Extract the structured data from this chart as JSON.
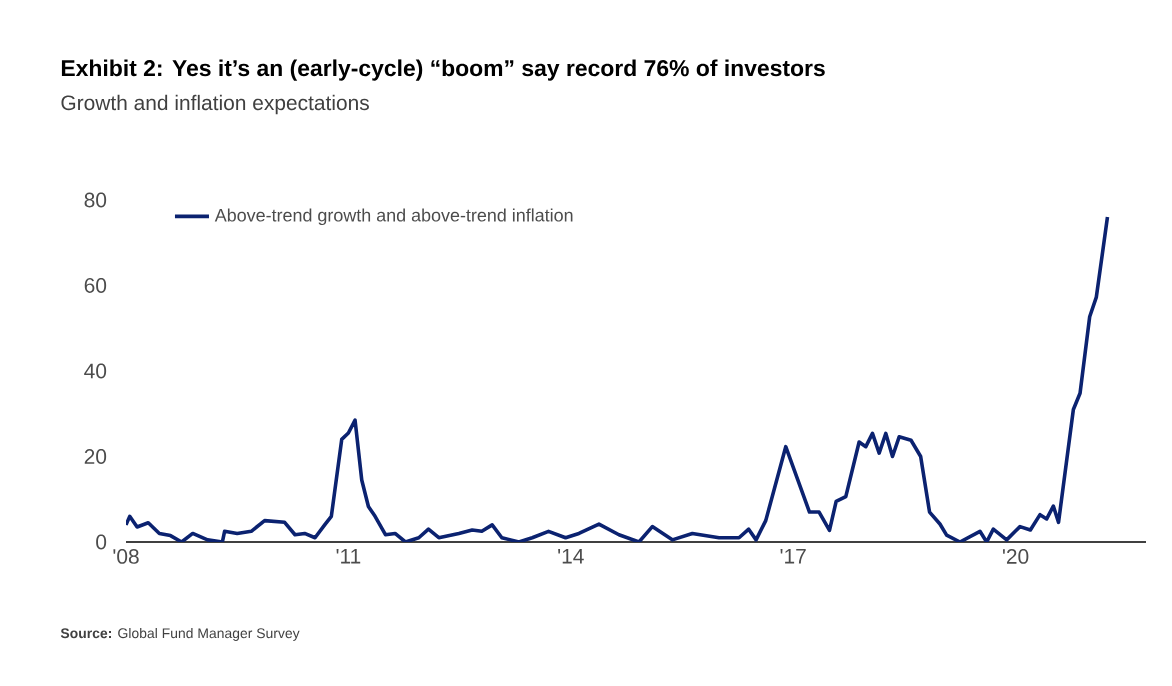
{
  "chart_data": {
    "type": "line",
    "title": "Exhibit 2: Yes it’s an (early-cycle) “boom” say record 76% of investors",
    "subtitle": "Growth and inflation expectations",
    "annotations": [
      "**Source:** Global Fund Manager Survey"
    ],
    "x": [
      2008.0,
      2008.05,
      2008.15,
      2008.3,
      2008.45,
      2008.6,
      2008.75,
      2008.9,
      2009.1,
      2009.3,
      2009.33,
      2009.5,
      2009.69,
      2009.87,
      2010.14,
      2010.28,
      2010.41,
      2010.55,
      2010.68,
      2010.77,
      2010.91,
      2011.0,
      2011.09,
      2011.18,
      2011.27,
      2011.36,
      2011.5,
      2011.63,
      2011.77,
      2011.95,
      2012.08,
      2012.22,
      2012.49,
      2012.67,
      2012.8,
      2012.94,
      2013.07,
      2013.3,
      2013.48,
      2013.7,
      2013.93,
      2014.11,
      2014.38,
      2014.65,
      2014.92,
      2015.1,
      2015.37,
      2015.64,
      2016.0,
      2016.27,
      2016.4,
      2016.5,
      2016.63,
      2016.9,
      2017.22,
      2017.35,
      2017.49,
      2017.58,
      2017.71,
      2017.89,
      2017.98,
      2018.07,
      2018.16,
      2018.25,
      2018.34,
      2018.43,
      2018.59,
      2018.72,
      2018.84,
      2018.98,
      2019.07,
      2019.25,
      2019.52,
      2019.61,
      2019.7,
      2019.88,
      2020.06,
      2020.2,
      2020.33,
      2020.42,
      2020.51,
      2020.58,
      2020.78,
      2020.87,
      2021.0,
      2021.09,
      2021.24
    ],
    "series": [
      {
        "name": "Above-trend growth and above-trend inflation",
        "color": "#0b2270",
        "values": [
          4,
          6,
          3.5,
          4.5,
          2,
          1.5,
          0,
          2,
          0.5,
          0,
          2.5,
          2,
          2.5,
          5,
          4.6,
          1.7,
          2,
          1,
          4,
          6,
          24,
          25.5,
          28.5,
          14.5,
          8.3,
          6,
          1.7,
          2,
          0,
          1,
          3,
          1,
          2,
          2.8,
          2.5,
          4,
          1,
          0,
          1,
          2.5,
          1,
          2,
          4.2,
          1.7,
          0,
          3.6,
          0.5,
          2,
          1,
          1,
          3,
          0.5,
          5,
          22.3,
          7,
          7,
          2.7,
          9.5,
          10.6,
          23.4,
          22.3,
          25.4,
          20.8,
          25.4,
          20,
          24.6,
          23.8,
          20,
          7,
          4.2,
          1.6,
          0,
          2.5,
          0,
          3,
          0.5,
          3.6,
          2.8,
          6.4,
          5.4,
          8.4,
          4.6,
          31,
          34.8,
          52.7,
          57.3,
          76
        ]
      }
    ],
    "xlim": [
      2008,
      2021.76
    ],
    "ylim": [
      0,
      80
    ],
    "xticks": [
      {
        "value": 2008,
        "label": "'08"
      },
      {
        "value": 2011,
        "label": "'11"
      },
      {
        "value": 2014,
        "label": "'14"
      },
      {
        "value": 2017,
        "label": "'17"
      },
      {
        "value": 2020,
        "label": "'20"
      }
    ],
    "yticks": [
      0,
      20,
      40,
      60,
      80
    ],
    "legend": "top left",
    "marker": "none",
    "line_style": "solid",
    "grid": false
  }
}
